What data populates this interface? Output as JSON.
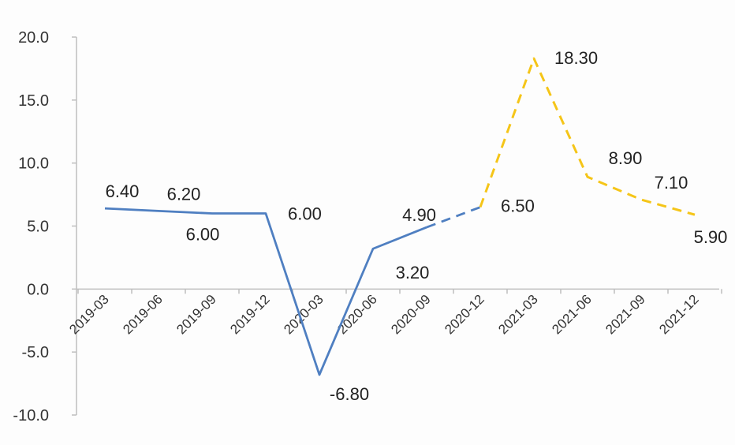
{
  "chart_data": {
    "type": "line",
    "categories": [
      "2019-03",
      "2019-06",
      "2019-09",
      "2019-12",
      "2020-03",
      "2020-06",
      "2020-09",
      "2020-12",
      "2021-03",
      "2021-06",
      "2021-09",
      "2021-12"
    ],
    "series": [
      {
        "style": "solid",
        "color": "#4f7fc1",
        "x": [
          "2019-03",
          "2019-06",
          "2019-09",
          "2019-12",
          "2020-03",
          "2020-06",
          "2020-09"
        ],
        "values": [
          6.4,
          6.2,
          6.0,
          6.0,
          -6.8,
          3.2,
          4.9
        ]
      },
      {
        "style": "dashed",
        "color": "#4f7fc1",
        "x": [
          "2020-09",
          "2020-12"
        ],
        "values": [
          4.9,
          6.5
        ]
      },
      {
        "style": "dashed",
        "color": "#f5c518",
        "x": [
          "2020-12",
          "2021-03",
          "2021-06",
          "2021-09",
          "2021-12"
        ],
        "values": [
          6.5,
          18.3,
          8.9,
          7.1,
          5.9
        ]
      }
    ],
    "y_ticks": [
      "20.0",
      "15.0",
      "10.0",
      "5.0",
      "0.0",
      "-5.0",
      "-10.0"
    ],
    "ylim": [
      -10,
      20
    ],
    "data_labels": [
      {
        "x": "2019-03",
        "y": 6.4,
        "text": "6.40",
        "pos": "above"
      },
      {
        "x": "2019-06",
        "y": 6.2,
        "text": "6.20",
        "pos": "above"
      },
      {
        "x": "2019-09",
        "y": 6.0,
        "text": "6.00",
        "pos": "below"
      },
      {
        "x": "2019-12",
        "y": 6.0,
        "text": "6.00",
        "pos": "right"
      },
      {
        "x": "2020-03",
        "y": -6.8,
        "text": "-6.80",
        "pos": "below"
      },
      {
        "x": "2020-06",
        "y": 3.2,
        "text": "3.20",
        "pos": "below"
      },
      {
        "x": "2020-09",
        "y": 4.9,
        "text": "4.90",
        "pos": "above"
      },
      {
        "x": "2020-12",
        "y": 6.5,
        "text": "6.50",
        "pos": "right"
      },
      {
        "x": "2021-03",
        "y": 18.3,
        "text": "18.30",
        "pos": "right"
      },
      {
        "x": "2021-06",
        "y": 8.9,
        "text": "8.90",
        "pos": "above"
      },
      {
        "x": "2021-09",
        "y": 7.1,
        "text": "7.10",
        "pos": "above"
      },
      {
        "x": "2021-12",
        "y": 5.9,
        "text": "5.90",
        "pos": "below"
      }
    ],
    "legend": "none",
    "grid": false,
    "title": "",
    "xlabel": "",
    "ylabel": ""
  }
}
